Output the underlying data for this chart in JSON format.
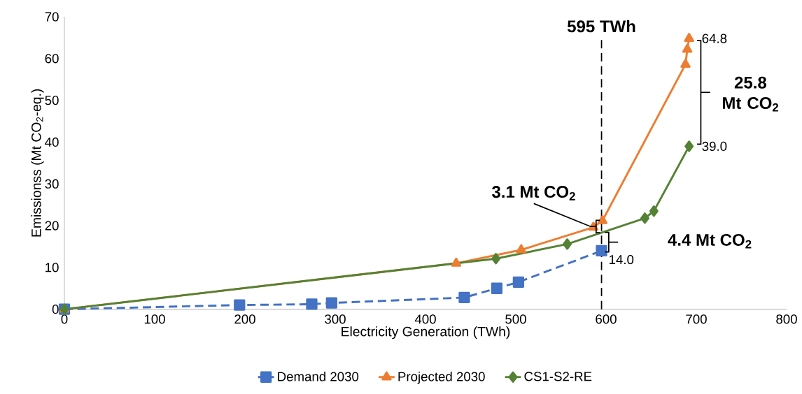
{
  "chart_data": {
    "type": "line",
    "xlabel": "Electricity Generation (TWh)",
    "ylabel": "Emissionss (Mt CO$_{2}$-eq.)",
    "xlim": [
      0,
      800
    ],
    "xticks": [
      0,
      100,
      200,
      300,
      400,
      500,
      600,
      700,
      800
    ],
    "ylim": [
      0,
      70
    ],
    "yticks": [
      0,
      10,
      20,
      30,
      40,
      50,
      60,
      70
    ],
    "grid": false,
    "legend": "bottom",
    "series": [
      {
        "name": "Demand 2030",
        "color": "#4472c4",
        "marker": "square",
        "line_style": "dashed",
        "x": [
          0,
          194,
          274,
          296,
          443,
          479,
          503,
          595
        ],
        "values": [
          0,
          1.0,
          1.2,
          1.5,
          2.8,
          5.0,
          6.5,
          14.0
        ],
        "value_labels": [
          null,
          null,
          null,
          null,
          null,
          null,
          null,
          "14.0"
        ]
      },
      {
        "name": "Projected 2030",
        "color": "#ed7d31",
        "marker": "triangle",
        "line_style": "solid",
        "x": [
          0,
          434,
          506,
          586,
          596,
          688,
          690,
          692
        ],
        "values": [
          0,
          11.0,
          14.2,
          19.6,
          21.2,
          58.6,
          62.2,
          64.8
        ],
        "value_labels": [
          null,
          null,
          null,
          null,
          null,
          null,
          null,
          "64.8"
        ]
      },
      {
        "name": "CS1-S2-RE",
        "color": "#548235",
        "marker": "diamond",
        "line_style": "solid",
        "x": [
          0,
          478,
          557,
          643,
          653,
          692
        ],
        "values": [
          0,
          12.1,
          15.6,
          21.8,
          23.5,
          39.0
        ],
        "value_labels": [
          null,
          null,
          null,
          null,
          null,
          "39.0"
        ]
      }
    ],
    "ref_lines": [
      {
        "axis": "x",
        "value": 595,
        "label": "595 TWh",
        "color": "#000000",
        "line_style": "dashed"
      }
    ],
    "annotations": [
      {
        "text": "3.1 Mt CO$_{2}$",
        "x": 589,
        "y": 19.8
      },
      "4.4 Mt CO$_{2}$",
      "25.8 Mt CO$_{2}$"
    ]
  }
}
